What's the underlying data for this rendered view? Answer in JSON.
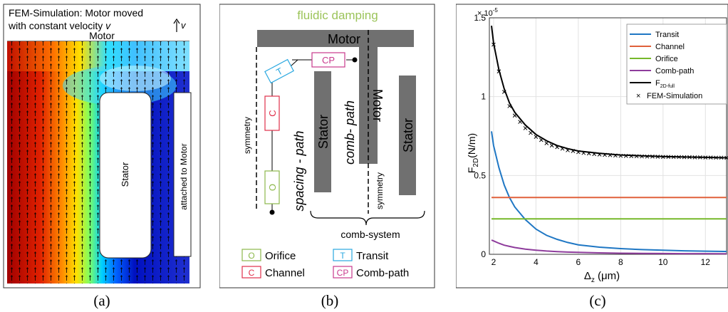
{
  "panel_a": {
    "title_line1": "FEM-Simulation: Motor moved",
    "title_line2_prefix": "with constant velocity ",
    "title_line2_var": "v",
    "arrow_label": "v",
    "motor_label": "Motor",
    "stator_label": "Stator",
    "attached_label": "attached to Motor",
    "caption": "(a)",
    "colors": {
      "hot": "#b00000",
      "mid": "#ffe000",
      "cold": "#0000c8"
    }
  },
  "panel_b": {
    "title": "fluidic damping",
    "motor_label": "Motor",
    "vertical_motor_label": "Motor",
    "stator_left_label": "Stator",
    "stator_right_label": "Stator",
    "symmetry_left": "symmetry",
    "symmetry_right": "symmetry",
    "spacing_path": "spacing - path",
    "comb_path": "comb- path",
    "comb_system": "comb-system",
    "node_T": "T",
    "node_CP": "CP",
    "node_C": "C",
    "node_O": "O",
    "legend": [
      {
        "key": "O",
        "label": "Orifice",
        "color": "#8cb84b"
      },
      {
        "key": "T",
        "label": "Transit",
        "color": "#2aa8e0"
      },
      {
        "key": "C",
        "label": "Channel",
        "color": "#e0304a"
      },
      {
        "key": "CP",
        "label": "Comb-path",
        "color": "#c8388c"
      }
    ],
    "caption": "(b)"
  },
  "chart_data": {
    "type": "line",
    "xlabel_main": "Δ",
    "xlabel_sub": "z",
    "xlabel_unit": "(μm)",
    "ylabel_main": "F",
    "ylabel_sub": "2D",
    "ylabel_unit": "(N/m)",
    "y_multiplier": "× 10",
    "y_multiplier_exp": "-5",
    "xlim": [
      1.8,
      13
    ],
    "ylim": [
      0,
      1.5
    ],
    "x_ticks": [
      2,
      4,
      6,
      8,
      10,
      12
    ],
    "x_tick_labels": [
      "2",
      "4",
      "6",
      "8",
      "10",
      "12"
    ],
    "y_ticks": [
      0,
      0.5,
      1,
      1.5
    ],
    "y_tick_labels": [
      "0",
      "0.5",
      "1",
      "1.5"
    ],
    "grid": true,
    "legend_position": "top-right",
    "x": [
      1.9,
      2,
      2.25,
      2.5,
      2.75,
      3,
      3.5,
      4,
      4.5,
      5,
      5.5,
      6,
      7,
      8,
      9,
      10,
      11,
      12,
      13
    ],
    "series": [
      {
        "name": "Transit",
        "color": "#1f77c4",
        "values": [
          0.78,
          0.69,
          0.55,
          0.44,
          0.36,
          0.3,
          0.22,
          0.16,
          0.12,
          0.095,
          0.075,
          0.06,
          0.045,
          0.036,
          0.03,
          0.026,
          0.022,
          0.02,
          0.018
        ]
      },
      {
        "name": "Channel",
        "color": "#e0603a",
        "values": [
          0.36,
          0.36,
          0.36,
          0.36,
          0.36,
          0.36,
          0.36,
          0.36,
          0.36,
          0.36,
          0.36,
          0.36,
          0.36,
          0.36,
          0.36,
          0.36,
          0.36,
          0.36,
          0.36
        ]
      },
      {
        "name": "Orifice",
        "color": "#76b82a",
        "values": [
          0.225,
          0.225,
          0.225,
          0.225,
          0.225,
          0.225,
          0.225,
          0.225,
          0.225,
          0.225,
          0.225,
          0.225,
          0.225,
          0.225,
          0.225,
          0.225,
          0.225,
          0.225,
          0.225
        ]
      },
      {
        "name": "Comb-path",
        "color": "#8e3c9c",
        "values": [
          0.09,
          0.085,
          0.07,
          0.058,
          0.05,
          0.043,
          0.033,
          0.026,
          0.021,
          0.017,
          0.014,
          0.012,
          0.009,
          0.007,
          0.006,
          0.005,
          0.004,
          0.004,
          0.003
        ]
      },
      {
        "name": "F",
        "name_sub": "2D-full",
        "color": "#000000",
        "values": [
          1.45,
          1.34,
          1.17,
          1.05,
          0.96,
          0.9,
          0.82,
          0.76,
          0.72,
          0.69,
          0.67,
          0.655,
          0.64,
          0.63,
          0.625,
          0.62,
          0.617,
          0.615,
          0.612
        ]
      }
    ],
    "fem": {
      "name": "FEM-Simulation",
      "x": [
        2,
        2.25,
        2.5,
        2.75,
        3,
        3.25,
        3.5,
        3.75,
        4,
        4.25,
        4.5,
        4.75,
        5,
        5.25,
        5.5,
        5.75,
        6,
        6.25,
        6.5,
        6.75,
        7,
        7.25,
        7.5,
        7.75,
        8,
        8.25,
        8.5,
        8.75,
        9,
        9.25,
        9.5,
        9.75,
        10,
        10.25,
        10.5,
        10.75,
        11,
        11.25,
        11.5,
        11.75,
        12,
        12.25,
        12.5,
        12.75,
        13
      ],
      "y": [
        1.33,
        1.16,
        1.03,
        0.94,
        0.88,
        0.84,
        0.8,
        0.77,
        0.745,
        0.725,
        0.705,
        0.69,
        0.68,
        0.67,
        0.66,
        0.655,
        0.648,
        0.643,
        0.64,
        0.636,
        0.633,
        0.631,
        0.629,
        0.627,
        0.625,
        0.624,
        0.623,
        0.622,
        0.621,
        0.62,
        0.62,
        0.619,
        0.618,
        0.618,
        0.617,
        0.617,
        0.616,
        0.616,
        0.615,
        0.615,
        0.614,
        0.614,
        0.613,
        0.613,
        0.612
      ]
    },
    "caption": "(c)"
  }
}
